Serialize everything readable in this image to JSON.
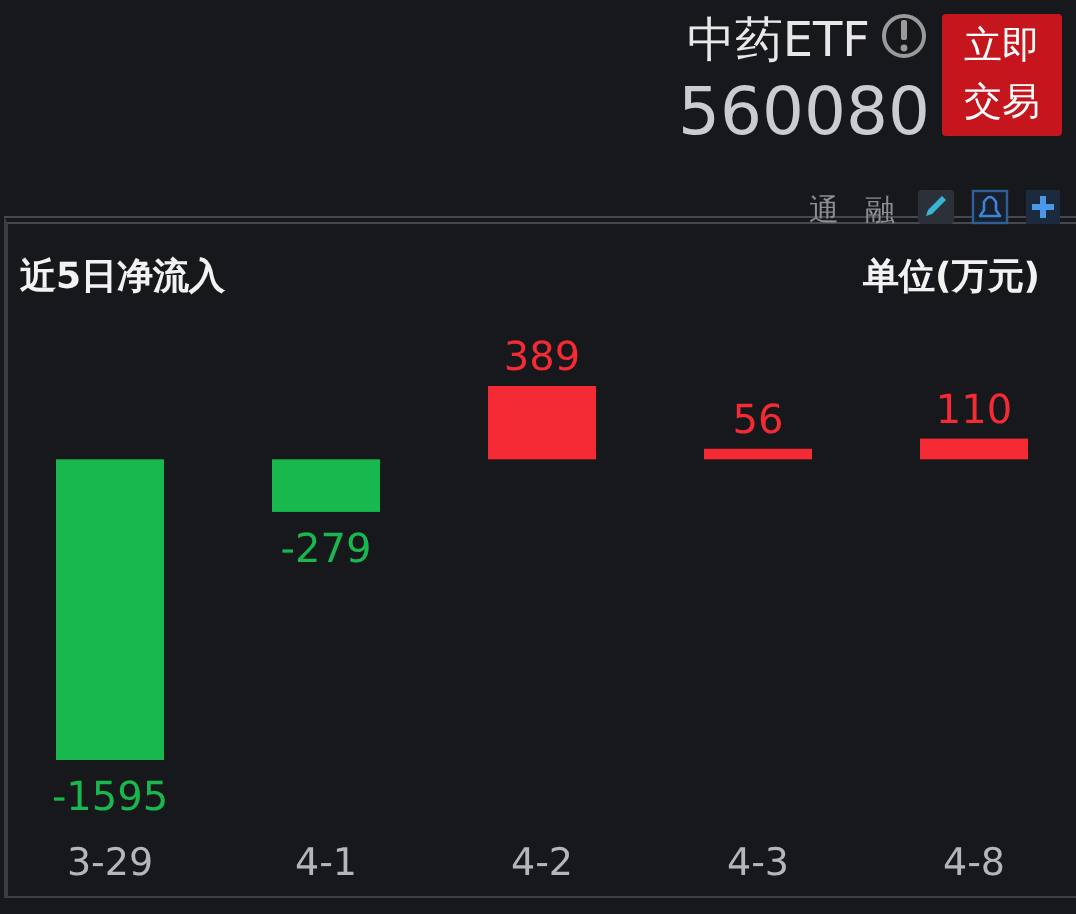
{
  "chart_data": {
    "type": "bar",
    "title": "近5日净流入",
    "annotations": [
      "单位(万元)",
      "中药ETF",
      "560080",
      "立即交易",
      "通",
      "融"
    ],
    "categories": [
      "3-29",
      "4-1",
      "4-2",
      "4-3",
      "4-8"
    ],
    "values": [
      -1595,
      -279,
      389,
      56,
      110
    ],
    "colors": [
      "#19b84f",
      "#19b84f",
      "#f42a35",
      "#f42a35",
      "#f42a35"
    ],
    "data_labels": true
  }
}
